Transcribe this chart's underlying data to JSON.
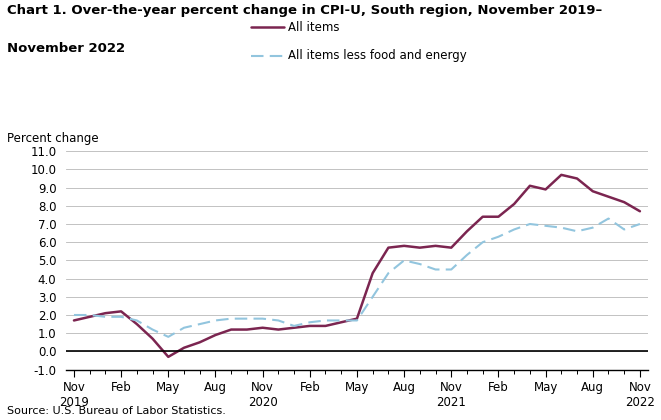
{
  "title_line1": "Chart 1. Over-the-year percent change in CPI-U, South region, November 2019–",
  "title_line2": "November 2022",
  "ylabel": "Percent change",
  "source": "Source: U.S. Bureau of Labor Statistics.",
  "ylim": [
    -1.0,
    11.0
  ],
  "yticks": [
    -1.0,
    0.0,
    1.0,
    2.0,
    3.0,
    4.0,
    5.0,
    6.0,
    7.0,
    8.0,
    9.0,
    10.0,
    11.0
  ],
  "all_items_color": "#7B2550",
  "core_color": "#92C5DE",
  "all_items_label": "All items",
  "core_label": "All items less food and energy",
  "tick_labels": [
    "Nov\n2019",
    "Feb",
    "May",
    "Aug",
    "Nov\n2020",
    "Feb",
    "May",
    "Aug",
    "Nov\n2021",
    "Feb",
    "May",
    "Aug",
    "Nov\n2022"
  ],
  "tick_positions": [
    0,
    3,
    6,
    9,
    12,
    15,
    18,
    21,
    24,
    27,
    30,
    33,
    36
  ],
  "all_items_values": [
    1.7,
    1.9,
    2.1,
    2.2,
    1.5,
    0.7,
    -0.3,
    0.2,
    0.5,
    0.9,
    1.2,
    1.2,
    1.3,
    1.2,
    1.3,
    1.4,
    1.4,
    1.6,
    1.8,
    4.3,
    5.7,
    5.8,
    5.7,
    5.8,
    5.7,
    6.6,
    7.4,
    7.4,
    8.1,
    9.1,
    8.9,
    9.7,
    9.5,
    8.8,
    8.5,
    8.2,
    7.7
  ],
  "core_values": [
    2.0,
    2.0,
    1.9,
    1.9,
    1.7,
    1.2,
    0.8,
    1.3,
    1.5,
    1.7,
    1.8,
    1.8,
    1.8,
    1.7,
    1.4,
    1.6,
    1.7,
    1.7,
    1.7,
    3.0,
    4.3,
    5.0,
    4.8,
    4.5,
    4.5,
    5.3,
    6.0,
    6.3,
    6.7,
    7.0,
    6.9,
    6.8,
    6.6,
    6.8,
    7.3,
    6.7,
    7.0
  ],
  "background_color": "#ffffff",
  "grid_color": "#b8b8b8"
}
